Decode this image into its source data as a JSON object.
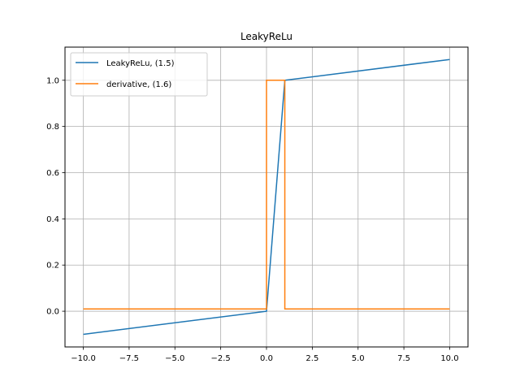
{
  "chart_data": {
    "type": "line",
    "title": "LeakyReLu",
    "xlabel": "",
    "ylabel": "",
    "xlim": [
      -11,
      11
    ],
    "ylim": [
      -0.1545,
      1.1435
    ],
    "grid": true,
    "legend_position": "top-left",
    "x_ticks": [
      -10.0,
      -7.5,
      -5.0,
      -2.5,
      0.0,
      2.5,
      5.0,
      7.5,
      10.0
    ],
    "x_tick_labels": [
      "−10.0",
      "−7.5",
      "−5.0",
      "−2.5",
      "0.0",
      "2.5",
      "5.0",
      "7.5",
      "10.0"
    ],
    "y_ticks": [
      0.0,
      0.2,
      0.4,
      0.6,
      0.8,
      1.0
    ],
    "y_tick_labels": [
      "0.0",
      "0.2",
      "0.4",
      "0.6",
      "0.8",
      "1.0"
    ],
    "series": [
      {
        "name": "LeakyReLu, (1.5)",
        "color": "#1f77b4",
        "x": [
          -10,
          0,
          1,
          10
        ],
        "y": [
          -0.1,
          0,
          1,
          1.09
        ]
      },
      {
        "name": "derivative, (1.6)",
        "color": "#ff7f0e",
        "x": [
          -10,
          0,
          0,
          1,
          1,
          10
        ],
        "y": [
          0.01,
          0.01,
          1,
          1,
          0.01,
          0.01
        ]
      }
    ]
  }
}
